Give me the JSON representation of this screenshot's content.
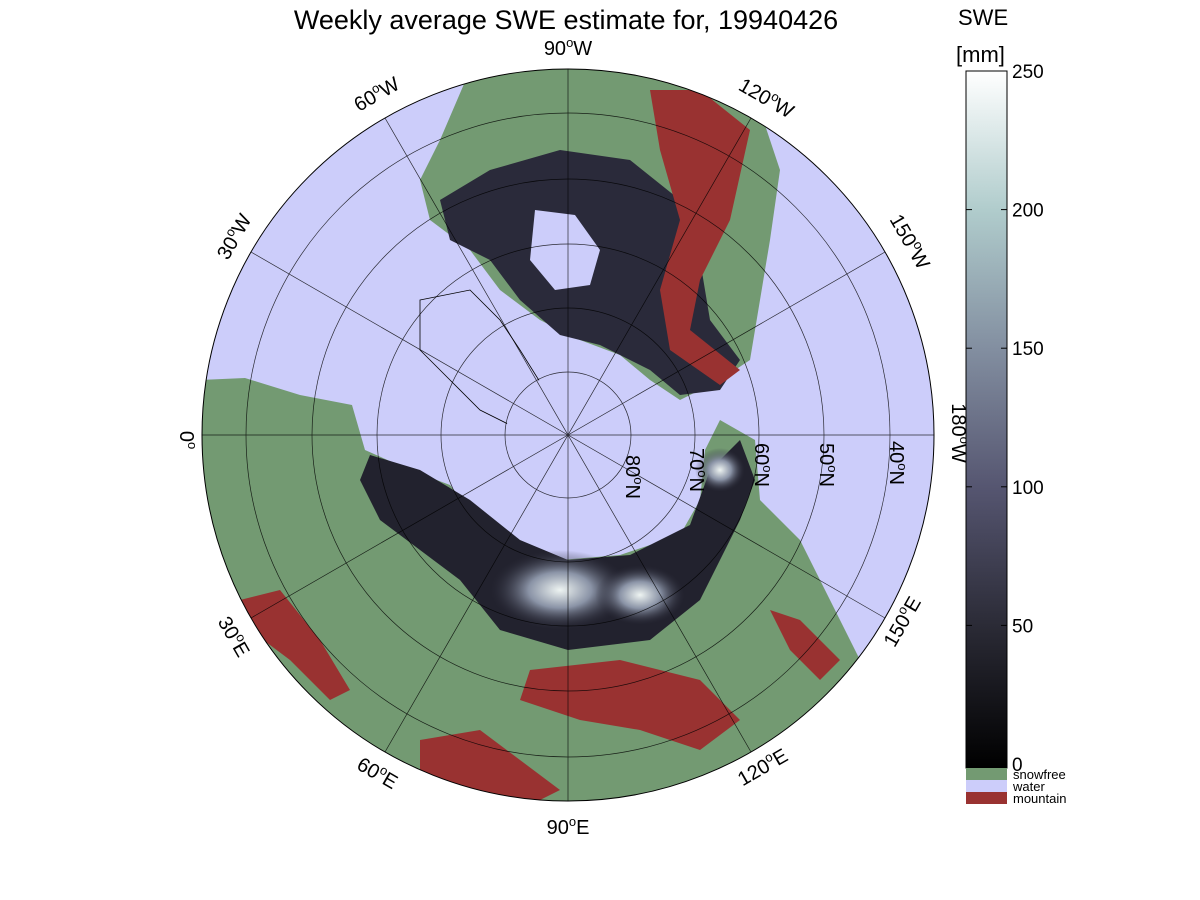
{
  "title": "Weekly average SWE estimate for, 19940426",
  "colorbar": {
    "label_line1": "SWE",
    "label_line2": "[mm]",
    "ticks": [
      "0",
      "50",
      "100",
      "150",
      "200",
      "250"
    ],
    "range": [
      0,
      250
    ]
  },
  "legend": [
    {
      "label": "snowfree",
      "color": "#739a72"
    },
    {
      "label": "water",
      "color": "#cccdfa"
    },
    {
      "label": "mountain",
      "color": "#993231"
    }
  ],
  "map": {
    "projection": "north polar stereographic",
    "meridians": [
      {
        "label": "90",
        "hemi": "W"
      },
      {
        "label": "120",
        "hemi": "W"
      },
      {
        "label": "150",
        "hemi": "W"
      },
      {
        "label": "180",
        "hemi": "W"
      },
      {
        "label": "150",
        "hemi": "E"
      },
      {
        "label": "120",
        "hemi": "E"
      },
      {
        "label": "90",
        "hemi": "E"
      },
      {
        "label": "60",
        "hemi": "E"
      },
      {
        "label": "30",
        "hemi": "E"
      },
      {
        "label": "0",
        "hemi": ""
      },
      {
        "label": "30",
        "hemi": "W"
      },
      {
        "label": "60",
        "hemi": "W"
      }
    ],
    "parallels": [
      {
        "label": "80",
        "hemi": "N"
      },
      {
        "label": "70",
        "hemi": "N"
      },
      {
        "label": "60",
        "hemi": "N"
      },
      {
        "label": "50",
        "hemi": "N"
      },
      {
        "label": "40",
        "hemi": "N"
      }
    ],
    "degree_symbol": "o",
    "colors": {
      "water": "#cccdfa",
      "land": "#739a72",
      "mountain": "#993231",
      "snow_low": "#101015",
      "snow_high": "#f4f8f6"
    }
  }
}
